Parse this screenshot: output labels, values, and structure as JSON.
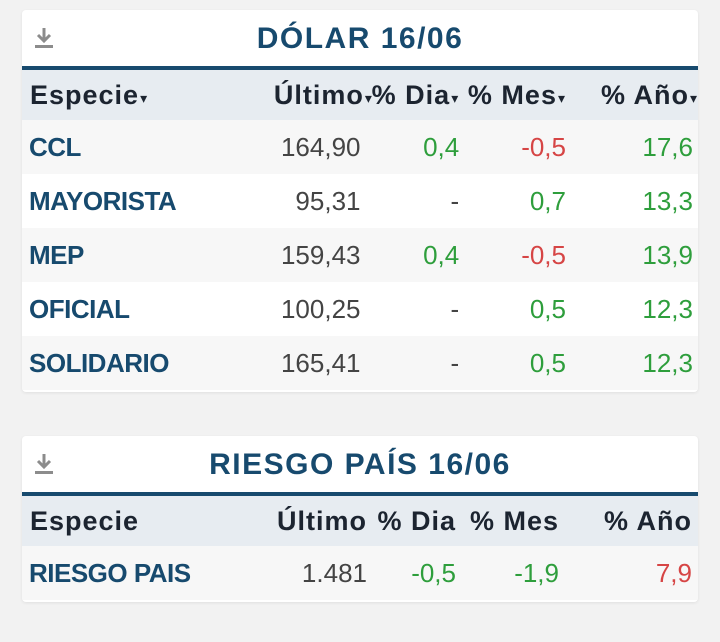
{
  "dolar": {
    "title": "DÓLAR 16/06",
    "download_icon": "download-icon",
    "columns": [
      "Especie",
      "Último",
      "% Dia",
      "% Mes",
      "% Año"
    ],
    "sort_icon": "▾",
    "rows": [
      {
        "especie": "CCL",
        "ultimo": "164,90",
        "dia": "0,4",
        "mes": "-0,5",
        "anio": "17,6"
      },
      {
        "especie": "MAYORISTA",
        "ultimo": "95,31",
        "dia": "-",
        "mes": "0,7",
        "anio": "13,3"
      },
      {
        "especie": "MEP",
        "ultimo": "159,43",
        "dia": "0,4",
        "mes": "-0,5",
        "anio": "13,9"
      },
      {
        "especie": "OFICIAL",
        "ultimo": "100,25",
        "dia": "-",
        "mes": "0,5",
        "anio": "12,3"
      },
      {
        "especie": "SOLIDARIO",
        "ultimo": "165,41",
        "dia": "-",
        "mes": "0,5",
        "anio": "12,3"
      }
    ]
  },
  "riesgo": {
    "title": "RIESGO PAÍS 16/06",
    "download_icon": "download-icon",
    "columns": [
      "Especie",
      "Último",
      "% Dia",
      "% Mes",
      "% Año"
    ],
    "rows": [
      {
        "especie": "RIESGO PAIS",
        "ultimo": "1.481",
        "dia": "-0,5",
        "mes": "-1,9",
        "anio": "7,9"
      }
    ]
  },
  "colors": {
    "title_blue": "#174a6e",
    "header_bg": "#e7ecf1",
    "positive": "#2e9e3c",
    "negative": "#d64545"
  }
}
